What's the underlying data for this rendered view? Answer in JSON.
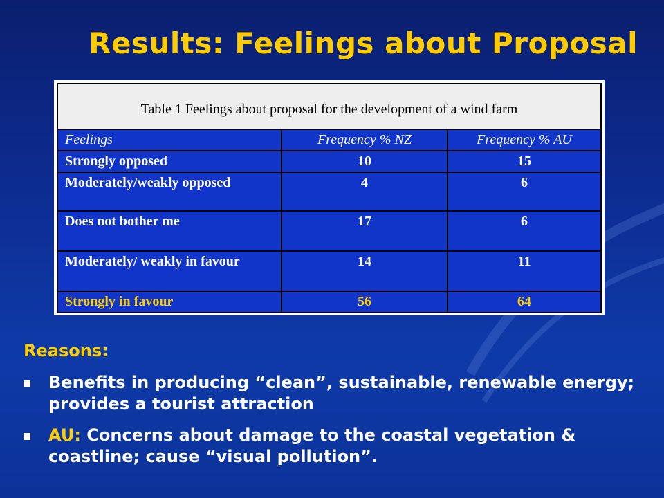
{
  "slide": {
    "title": "Results: Feelings about Proposal"
  },
  "table": {
    "caption": "Table 1 Feelings about proposal for the development of a wind farm",
    "headers": [
      "Feelings",
      "Frequency % NZ",
      "Frequency % AU"
    ],
    "rows": [
      {
        "feeling": "Strongly opposed",
        "nz": "10",
        "au": "15"
      },
      {
        "feeling": "Moderately/weakly opposed",
        "nz": "4",
        "au": "6"
      },
      {
        "feeling": "Does not bother me",
        "nz": "17",
        "au": "6"
      },
      {
        "feeling": "Moderately/ weakly in favour",
        "nz": "14",
        "au": "11"
      },
      {
        "feeling": "Strongly in favour",
        "nz": "56",
        "au": "64"
      }
    ]
  },
  "reasons": {
    "title": "Reasons:",
    "bullet1": "Benefits in producing “clean”, sustainable, renewable energy; provides a tourist attraction",
    "bullet2_prefix": "AU:",
    "bullet2_text": " Concerns about damage to the coastal vegetation & coastline; cause “visual pollution”."
  },
  "colors": {
    "background": "#0d2b8f",
    "accent": "#ffcc00",
    "table_cell": "#1035c8"
  }
}
